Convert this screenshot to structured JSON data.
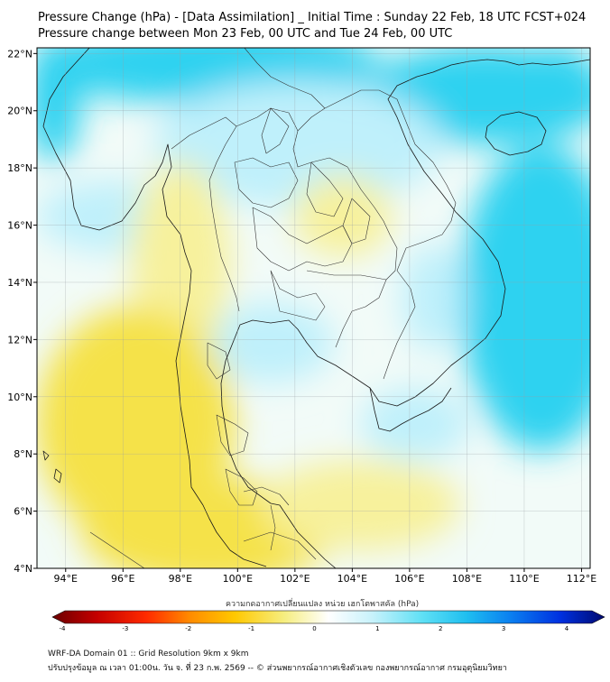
{
  "title": {
    "line1": "Pressure Change (hPa) - [Data Assimilation] _ Initial Time : Sunday 22 Feb, 18 UTC FCST+024",
    "line2": "Pressure change between Mon 23 Feb, 00 UTC and Tue 24 Feb, 00 UTC"
  },
  "map": {
    "lon_range": [
      93,
      112.3
    ],
    "lat_range": [
      4,
      22.2
    ],
    "x_ticks": [
      {
        "value": 94,
        "label": "94°E"
      },
      {
        "value": 96,
        "label": "96°E"
      },
      {
        "value": 98,
        "label": "98°E"
      },
      {
        "value": 100,
        "label": "100°E"
      },
      {
        "value": 102,
        "label": "102°E"
      },
      {
        "value": 104,
        "label": "104°E"
      },
      {
        "value": 106,
        "label": "106°E"
      },
      {
        "value": 108,
        "label": "108°E"
      },
      {
        "value": 110,
        "label": "110°E"
      },
      {
        "value": 112,
        "label": "112°E"
      }
    ],
    "y_ticks": [
      {
        "value": 4,
        "label": "4°N"
      },
      {
        "value": 6,
        "label": "6°N"
      },
      {
        "value": 8,
        "label": "8°N"
      },
      {
        "value": 10,
        "label": "10°N"
      },
      {
        "value": 12,
        "label": "12°N"
      },
      {
        "value": 14,
        "label": "14°N"
      },
      {
        "value": 16,
        "label": "16°N"
      },
      {
        "value": 18,
        "label": "18°N"
      },
      {
        "value": 20,
        "label": "20°N"
      },
      {
        "value": 22,
        "label": "22°N"
      }
    ],
    "grid": true,
    "field_colors": {
      "positive_strong": "#2ed2f0",
      "positive_light": "#bff0fb",
      "neutral": "#f2fbf8",
      "negative_light": "#f7f19c",
      "negative_strong": "#f5e24a"
    }
  },
  "colorbar": {
    "title": "ความกดอากาศเปลี่ยนแปลง หน่วย เฮกโตพาสคัล (hPa)",
    "ticks": [
      "-4",
      "-3",
      "-2",
      "-1",
      "0",
      "1",
      "2",
      "3",
      "4"
    ],
    "range": [
      -4,
      4
    ]
  },
  "footer": {
    "line1": "WRF-DA Domain 01 :: Grid Resolution 9km x 9km",
    "line2": "ปรับปรุงข้อมูล ณ เวลา 01:00น. วัน จ. ที่ 23 ก.พ. 2569 -- © ส่วนพยากรณ์อากาศเชิงตัวเลข กองพยากรณ์อากาศ กรมอุตุนิยมวิทยา"
  }
}
